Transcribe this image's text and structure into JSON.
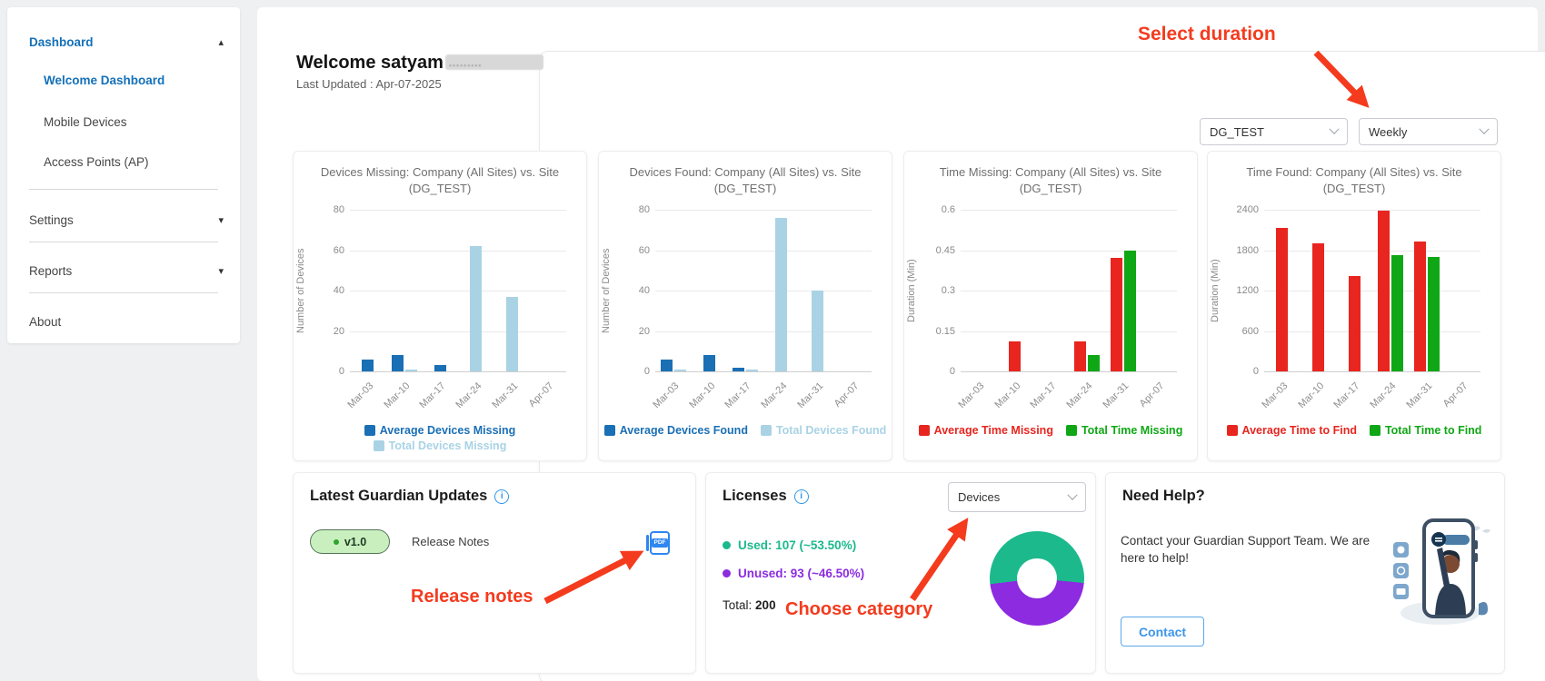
{
  "icons": {
    "caret_up": "▴",
    "caret_down": "▾",
    "info": "i",
    "pdf_label": "PDF"
  },
  "sidebar": {
    "items": [
      {
        "label": "Dashboard",
        "active": true,
        "caret": "up"
      },
      {
        "label": "Welcome Dashboard",
        "active": true
      },
      {
        "label": "Mobile Devices"
      },
      {
        "label": "Access Points (AP)"
      },
      {
        "label": "Settings",
        "caret": "down"
      },
      {
        "label": "Reports",
        "caret": "down"
      },
      {
        "label": "About"
      }
    ]
  },
  "header": {
    "welcome": "Welcome satyam",
    "redacted_hint": ".........",
    "last_updated": "Last Updated : Apr-07-2025"
  },
  "filters": {
    "site": "DG_TEST",
    "duration": "Weekly"
  },
  "annotations": {
    "color": "#f43b1e",
    "select_duration": "Select duration",
    "release_notes": "Release notes",
    "choose_category": "Choose category"
  },
  "chart_data": [
    {
      "type": "bar",
      "title": "Devices Missing: Company (All Sites) vs. Site (DG_TEST)",
      "ylabel": "Number of Devices",
      "categories": [
        "Mar-03",
        "Mar-10",
        "Mar-17",
        "Mar-24",
        "Mar-31",
        "Apr-07"
      ],
      "yticks": [
        0,
        20,
        40,
        60,
        80
      ],
      "ymax": 80,
      "legend_rows": 2,
      "series": [
        {
          "name": "Average Devices Missing",
          "color": "#1a6fb5",
          "values": [
            6,
            8,
            3,
            0,
            0,
            0
          ]
        },
        {
          "name": "Total Devices Missing",
          "color": "#a9d3e5",
          "values": [
            0,
            1,
            0,
            62,
            37,
            0
          ]
        }
      ]
    },
    {
      "type": "bar",
      "title": "Devices Found: Company (All Sites) vs. Site (DG_TEST)",
      "ylabel": "Number of Devices",
      "categories": [
        "Mar-03",
        "Mar-10",
        "Mar-17",
        "Mar-24",
        "Mar-31",
        "Apr-07"
      ],
      "yticks": [
        0,
        20,
        40,
        60,
        80
      ],
      "ymax": 80,
      "legend_rows": 1,
      "series": [
        {
          "name": "Average Devices Found",
          "color": "#1a6fb5",
          "values": [
            6,
            8,
            2,
            0,
            0,
            0
          ]
        },
        {
          "name": "Total Devices Found",
          "color": "#a9d3e5",
          "values": [
            1,
            0,
            1,
            76,
            40,
            0
          ]
        }
      ]
    },
    {
      "type": "bar",
      "title": "Time Missing: Company (All Sites) vs. Site (DG_TEST)",
      "ylabel": "Duration (Min)",
      "categories": [
        "Mar-03",
        "Mar-10",
        "Mar-17",
        "Mar-24",
        "Mar-31",
        "Apr-07"
      ],
      "yticks": [
        0,
        0.15,
        0.3,
        0.45,
        0.6
      ],
      "ymax": 0.6,
      "legend_rows": 1,
      "series": [
        {
          "name": "Average Time Missing",
          "color": "#e8251f",
          "values": [
            0,
            0.11,
            0,
            0.11,
            0.42,
            0
          ]
        },
        {
          "name": "Total Time Missing",
          "color": "#0fa715",
          "values": [
            0,
            0,
            0,
            0.06,
            0.45,
            0
          ]
        }
      ]
    },
    {
      "type": "bar",
      "title": "Time Found: Company (All Sites) vs. Site (DG_TEST)",
      "ylabel": "Duration (Min)",
      "categories": [
        "Mar-03",
        "Mar-10",
        "Mar-17",
        "Mar-24",
        "Mar-31",
        "Apr-07"
      ],
      "yticks": [
        0,
        600,
        1200,
        1800,
        2400
      ],
      "ymax": 2400,
      "legend_rows": 1,
      "series": [
        {
          "name": "Average Time to Find",
          "color": "#e8251f",
          "values": [
            2130,
            1900,
            1420,
            2390,
            1930,
            0
          ]
        },
        {
          "name": "Total Time to Find",
          "color": "#0fa715",
          "values": [
            0,
            0,
            0,
            1720,
            1700,
            0
          ]
        }
      ]
    }
  ],
  "updates": {
    "title": "Latest Guardian Updates",
    "version": "v1.0",
    "release_notes_label": "Release Notes"
  },
  "licenses": {
    "title": "Licenses",
    "category": "Devices",
    "used_label": "Used: 107 (~53.50%)",
    "unused_label": "Unused: 93 (~46.50%)",
    "total_label": "Total:",
    "total_value": "200",
    "used_pct": 53.5,
    "used_color": "#1cb98d",
    "unused_color": "#8c2be0"
  },
  "help": {
    "title": "Need Help?",
    "message": "Contact your Guardian Support Team. We are here to help!",
    "button": "Contact"
  }
}
